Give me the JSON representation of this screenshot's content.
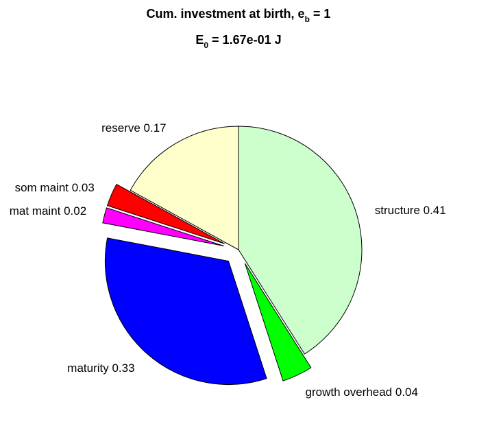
{
  "chart_data": {
    "type": "pie",
    "title": {
      "line1_main": "Cum. investment at birth, e",
      "line1_sub": "b",
      "line1_tail": " = 1",
      "line2_main": "E",
      "line2_sub": "0",
      "line2_tail": " = 1.67e-01 J"
    },
    "slices": [
      {
        "label": "structure 0.41",
        "name": "structure",
        "value": 0.41,
        "color": "#ccffcc",
        "exploded": false
      },
      {
        "label": "growth overhead 0.04",
        "name": "growth overhead",
        "value": 0.04,
        "color": "#00ff00",
        "exploded": true
      },
      {
        "label": "maturity 0.33",
        "name": "maturity",
        "value": 0.33,
        "color": "#0000ff",
        "exploded": true
      },
      {
        "label": "mat maint 0.02",
        "name": "mat maint",
        "value": 0.02,
        "color": "#ff00ff",
        "exploded": true
      },
      {
        "label": "som maint 0.03",
        "name": "som maint",
        "value": 0.03,
        "color": "#ff0000",
        "exploded": true
      },
      {
        "label": "reserve 0.17",
        "name": "reserve",
        "value": 0.17,
        "color": "#ffffcc",
        "exploded": false
      }
    ]
  }
}
